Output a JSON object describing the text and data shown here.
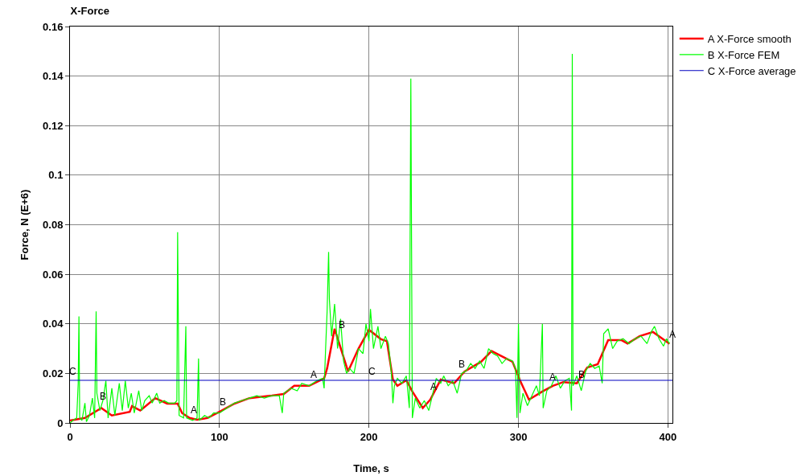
{
  "chart_data": {
    "type": "line",
    "title": "X-Force",
    "xlabel": "Time, s",
    "ylabel": "Force, N (E+6)",
    "xlim": [
      0,
      403
    ],
    "xticks": [
      0,
      100,
      200,
      300,
      400
    ],
    "ylim": [
      0,
      0.16
    ],
    "yticks": [
      0,
      0.02,
      0.04,
      0.06,
      0.08,
      0.1,
      0.12,
      0.14,
      0.16
    ],
    "grid": true,
    "legend": "top right",
    "marker": "none",
    "line_style": "solid",
    "series": [
      {
        "name": "A X-Force smooth",
        "color": "#ff0000",
        "x": [
          0,
          10,
          21,
          28,
          40,
          41.5,
          47,
          57,
          65,
          72,
          75,
          80,
          85,
          92,
          100,
          110,
          120,
          130,
          135,
          143,
          150,
          160,
          170,
          172,
          177,
          186,
          193,
          200,
          208,
          212,
          216,
          219,
          225,
          229,
          236,
          241,
          248,
          257,
          264,
          275,
          282,
          296,
          301,
          307,
          316,
          323,
          330,
          339,
          346,
          353,
          360,
          369,
          373,
          381,
          390,
          401
        ],
        "values": [
          0.001,
          0.002,
          0.006,
          0.003,
          0.0045,
          0.0068,
          0.005,
          0.01,
          0.0078,
          0.0078,
          0.004,
          0.002,
          0.0013,
          0.002,
          0.0045,
          0.0078,
          0.01,
          0.0107,
          0.011,
          0.0117,
          0.015,
          0.015,
          0.018,
          0.022,
          0.038,
          0.0208,
          0.03,
          0.0376,
          0.0338,
          0.033,
          0.0175,
          0.015,
          0.0172,
          0.0127,
          0.006,
          0.0094,
          0.0175,
          0.016,
          0.0208,
          0.0247,
          0.029,
          0.0247,
          0.0172,
          0.0094,
          0.0127,
          0.015,
          0.0165,
          0.016,
          0.0224,
          0.0237,
          0.0334,
          0.0334,
          0.032,
          0.035,
          0.0367,
          0.032
        ]
      },
      {
        "name": "B X-Force FEM",
        "color": "#00ff00",
        "x": [
          0,
          1,
          3,
          4.5,
          5.5,
          6,
          6.5,
          8,
          10,
          11,
          13,
          15,
          16.5,
          17.5,
          18,
          20,
          22,
          24,
          25.5,
          28,
          30,
          33,
          35,
          37,
          39,
          41,
          43,
          46,
          48,
          50,
          53,
          55,
          58,
          60,
          63,
          66,
          70,
          71.5,
          72,
          72.5,
          73,
          76,
          77.5,
          78,
          82,
          85,
          86,
          86.5,
          90,
          93,
          96,
          100,
          105,
          110,
          115,
          120,
          125,
          130,
          135,
          140,
          142,
          143,
          148,
          152,
          155,
          160,
          165,
          169,
          170,
          171,
          172,
          173,
          173.5,
          175,
          177,
          179,
          181,
          183,
          185,
          187,
          190,
          193,
          196,
          198,
          200,
          201,
          203,
          206,
          208,
          211,
          213,
          215,
          216,
          217,
          219,
          222,
          225,
          227,
          228,
          228.5,
          229,
          231,
          234,
          237,
          240,
          242,
          245,
          248,
          250,
          253,
          256,
          259,
          262,
          265,
          268,
          271,
          274,
          277,
          280,
          283,
          286,
          289,
          292,
          296,
          298,
          299,
          300,
          301,
          303,
          306,
          309,
          312,
          314,
          316,
          316.5,
          319,
          322,
          325,
          328,
          331,
          334,
          335.5,
          336,
          336.5,
          339,
          342,
          345,
          348,
          351,
          354,
          356,
          357,
          360,
          363,
          366,
          370,
          374,
          378,
          382,
          386,
          389,
          391,
          394,
          397,
          399,
          401
        ],
        "values": [
          0,
          0.0005,
          0.0015,
          0.002,
          0.016,
          0.043,
          0.002,
          0.001,
          0.008,
          0.0005,
          0.003,
          0.01,
          0.002,
          0.045,
          0.012,
          0.005,
          0.009,
          0.017,
          0.002,
          0.014,
          0.003,
          0.016,
          0.005,
          0.017,
          0.006,
          0.012,
          0.004,
          0.013,
          0.005,
          0.009,
          0.011,
          0.008,
          0.012,
          0.008,
          0.009,
          0.008,
          0.008,
          0.009,
          0.077,
          0.04,
          0.003,
          0.002,
          0.039,
          0.002,
          0.001,
          0.002,
          0.026,
          0.001,
          0.003,
          0.002,
          0.004,
          0.004,
          0.006,
          0.008,
          0.009,
          0.01,
          0.011,
          0.01,
          0.011,
          0.011,
          0.004,
          0.012,
          0.014,
          0.013,
          0.016,
          0.015,
          0.017,
          0.018,
          0.014,
          0.03,
          0.045,
          0.069,
          0.05,
          0.035,
          0.048,
          0.03,
          0.042,
          0.025,
          0.02,
          0.022,
          0.02,
          0.03,
          0.028,
          0.04,
          0.033,
          0.046,
          0.03,
          0.039,
          0.03,
          0.035,
          0.032,
          0.02,
          0.008,
          0.015,
          0.018,
          0.016,
          0.019,
          0.006,
          0.139,
          0.07,
          0.002,
          0.01,
          0.006,
          0.009,
          0.005,
          0.01,
          0.018,
          0.016,
          0.019,
          0.015,
          0.017,
          0.012,
          0.02,
          0.021,
          0.024,
          0.022,
          0.025,
          0.022,
          0.03,
          0.028,
          0.027,
          0.024,
          0.026,
          0.025,
          0.022,
          0.002,
          0.04,
          0.004,
          0.012,
          0.007,
          0.011,
          0.015,
          0.011,
          0.04,
          0.006,
          0.013,
          0.015,
          0.019,
          0.014,
          0.017,
          0.018,
          0.005,
          0.149,
          0.015,
          0.019,
          0.013,
          0.021,
          0.024,
          0.022,
          0.023,
          0.016,
          0.036,
          0.038,
          0.03,
          0.033,
          0.034,
          0.032,
          0.034,
          0.035,
          0.032,
          0.037,
          0.039,
          0.034,
          0.031,
          0.034,
          0.032
        ]
      },
      {
        "name": "C X-Force average",
        "color": "#0000c0",
        "x": [
          0,
          403
        ],
        "values": [
          0.0172,
          0.0172
        ]
      }
    ],
    "annotations": [
      {
        "text": "C",
        "x": 2,
        "y": 0.0172
      },
      {
        "text": "B",
        "x": 22,
        "y": 0.007
      },
      {
        "text": "A",
        "x": 83,
        "y": 0.0015
      },
      {
        "text": "B",
        "x": 102,
        "y": 0.005
      },
      {
        "text": "A",
        "x": 163,
        "y": 0.016
      },
      {
        "text": "B",
        "x": 182,
        "y": 0.036
      },
      {
        "text": "C",
        "x": 202,
        "y": 0.0172
      },
      {
        "text": "A",
        "x": 243,
        "y": 0.011
      },
      {
        "text": "B",
        "x": 262,
        "y": 0.02
      },
      {
        "text": "A",
        "x": 323,
        "y": 0.015
      },
      {
        "text": "B",
        "x": 342,
        "y": 0.016
      },
      {
        "text": "A",
        "x": 403,
        "y": 0.032
      }
    ]
  }
}
